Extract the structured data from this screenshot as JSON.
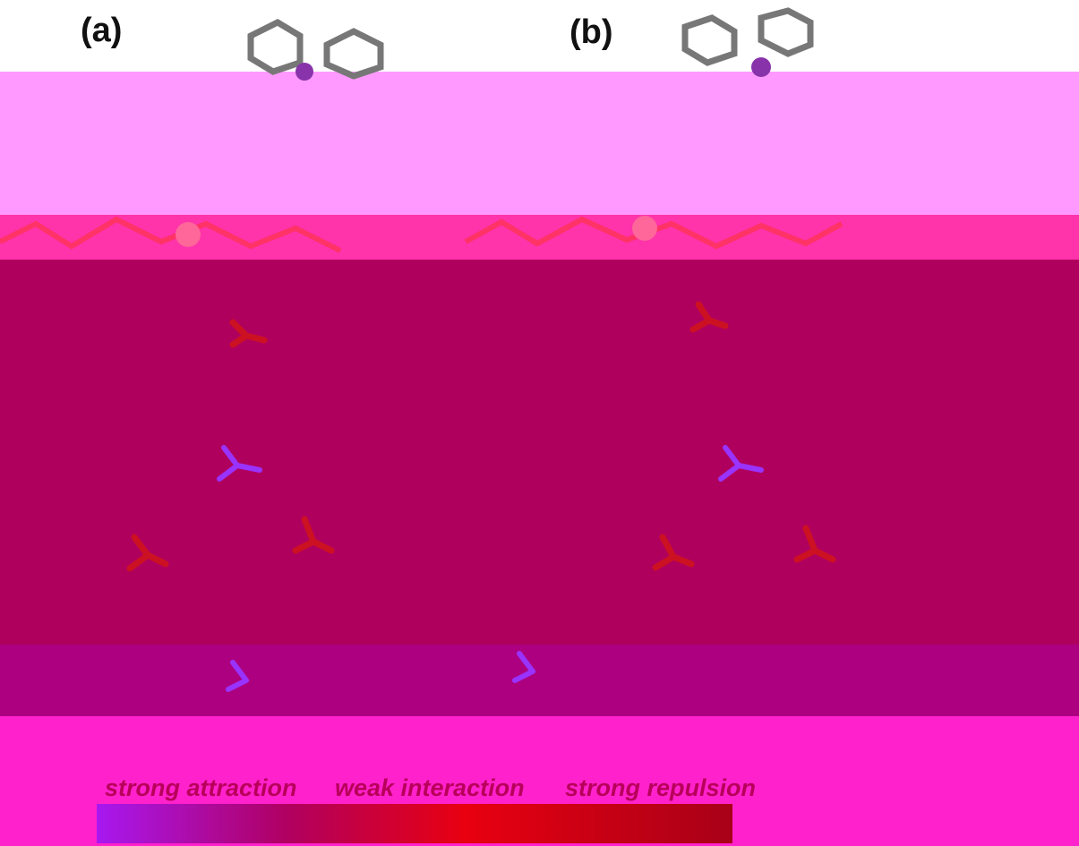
{
  "panels": [
    {
      "label": "(a)"
    },
    {
      "label": "(b)"
    }
  ],
  "colorbar": {
    "labels": [
      "strong attraction",
      "weak interaction",
      "strong repulsion"
    ]
  }
}
